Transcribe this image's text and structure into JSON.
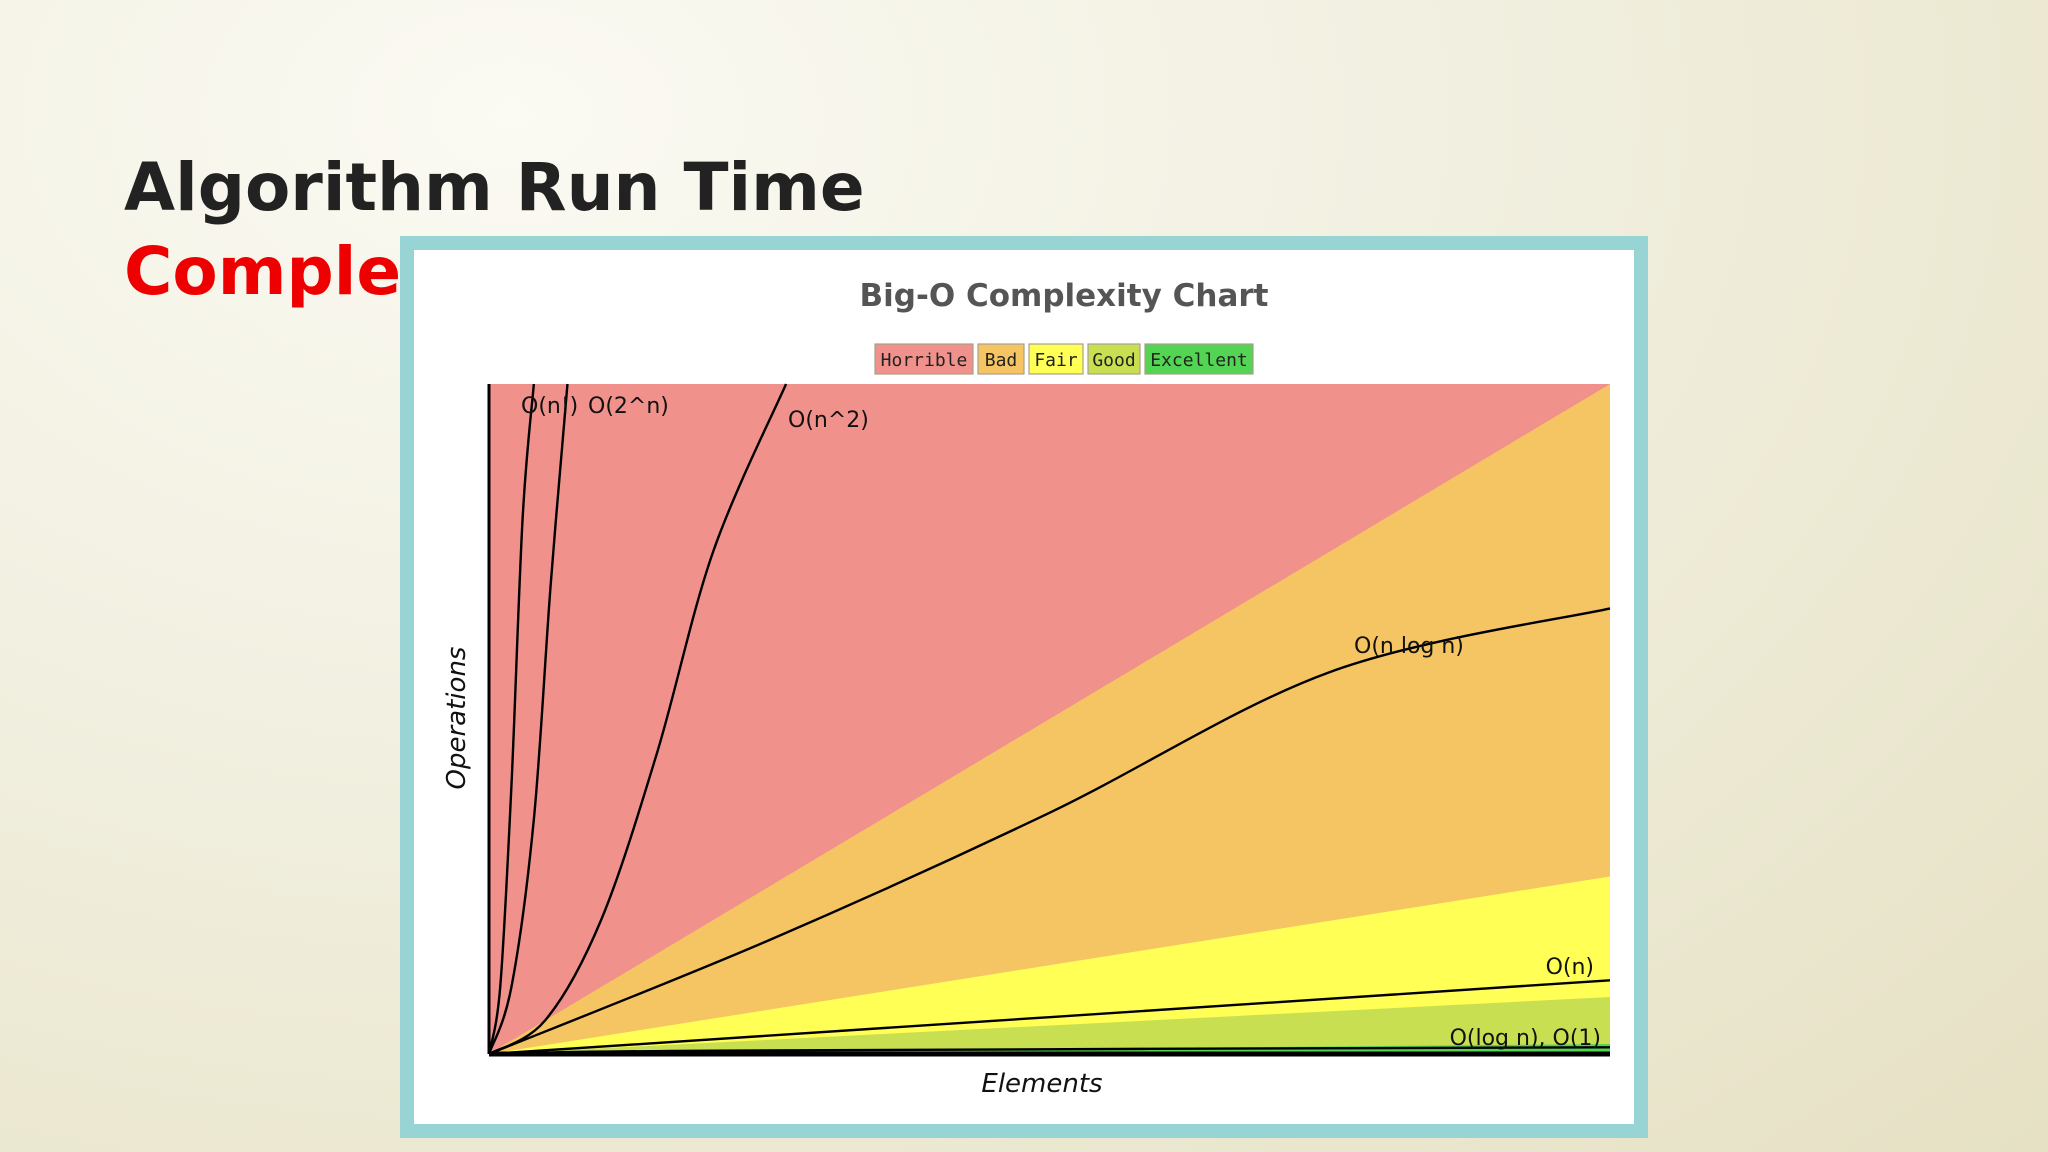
{
  "slide": {
    "title_line_1": "Algorithm Run Time",
    "title_line_2": "Complex"
  },
  "chart_data": {
    "type": "area",
    "title": "Big-O Complexity Chart",
    "xlabel": "Elements",
    "ylabel": "Operations",
    "xlim": [
      0,
      100
    ],
    "ylim": [
      0,
      100
    ],
    "grid": false,
    "legend_position": "top-center",
    "legend": [
      {
        "name": "Horrible",
        "color": "#f0918c"
      },
      {
        "name": "Bad",
        "color": "#f5c463"
      },
      {
        "name": "Fair",
        "color": "#ffff55"
      },
      {
        "name": "Good",
        "color": "#c8df52"
      },
      {
        "name": "Excellent",
        "color": "#53d453"
      }
    ],
    "regions": [
      {
        "name": "Horrible",
        "color": "#f0918c",
        "upper": [
          [
            0,
            100
          ],
          [
            100,
            100
          ]
        ]
      },
      {
        "name": "Bad",
        "color": "#f5c463",
        "upper": [
          [
            0,
            0
          ],
          [
            100,
            100
          ]
        ]
      },
      {
        "name": "Fair",
        "color": "#ffff55",
        "upper": [
          [
            0,
            0
          ],
          [
            100,
            26.5
          ]
        ]
      },
      {
        "name": "Good",
        "color": "#c8df52",
        "upper": [
          [
            0,
            0
          ],
          [
            100,
            8.5
          ]
        ]
      },
      {
        "name": "Excellent",
        "color": "#53d453",
        "upper": [
          [
            0,
            0
          ],
          [
            100,
            1.5
          ]
        ]
      }
    ],
    "series": [
      {
        "name": "O(n!)",
        "points": [
          [
            0,
            0
          ],
          [
            1,
            10
          ],
          [
            2,
            40
          ],
          [
            3,
            80
          ],
          [
            4,
            100
          ]
        ]
      },
      {
        "name": "O(2^n)",
        "points": [
          [
            0,
            0
          ],
          [
            2,
            10
          ],
          [
            4,
            35
          ],
          [
            5.5,
            70
          ],
          [
            7,
            100
          ]
        ]
      },
      {
        "name": "O(n^2)",
        "points": [
          [
            0,
            0
          ],
          [
            5,
            5
          ],
          [
            10,
            20
          ],
          [
            15,
            45
          ],
          [
            20,
            75
          ],
          [
            26.5,
            100
          ]
        ]
      },
      {
        "name": "O(n log n)",
        "points": [
          [
            0,
            0
          ],
          [
            25,
            17
          ],
          [
            50,
            36
          ],
          [
            75,
            57
          ],
          [
            100,
            66.5
          ]
        ]
      },
      {
        "name": "O(n)",
        "points": [
          [
            0,
            0
          ],
          [
            100,
            11
          ]
        ]
      },
      {
        "name": "O(log n), O(1)",
        "points": [
          [
            0,
            0
          ],
          [
            20,
            0.5
          ],
          [
            100,
            1
          ]
        ]
      }
    ]
  }
}
